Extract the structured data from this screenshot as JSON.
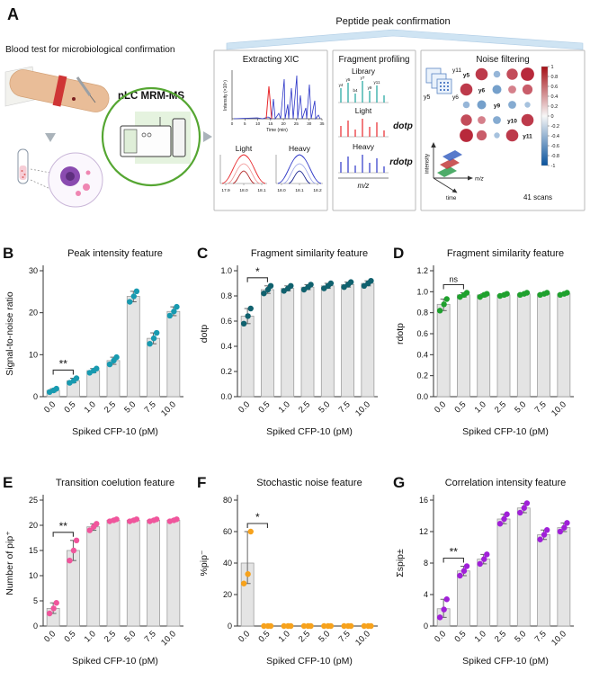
{
  "panel_a": {
    "label": "A",
    "caption_top": "Peptide peak confirmation",
    "left_caption": "Blood test for microbiological confirmation",
    "instrument_label": "nLC MRM-MS",
    "xic": {
      "title": "Extracting XIC",
      "ylabel": "Intensity (×10⁵)",
      "xlabel": "Time (min)",
      "xticks": [
        "0",
        "5",
        "10",
        "15",
        "20",
        "25",
        "30",
        "35"
      ],
      "light_label": "Light",
      "heavy_label": "Heavy",
      "light_color": "#e8262a",
      "heavy_color": "#2b35c7",
      "light_xticks": [
        "17.9",
        "18.0",
        "18.1"
      ],
      "heavy_xticks": [
        "18.0",
        "18.1",
        "18.2"
      ]
    },
    "frag": {
      "title": "Fragment profiling",
      "library_label": "Library",
      "light_label": "Light",
      "heavy_label": "Heavy",
      "dotp_label": "dotp",
      "rdotp_label": "rdotp",
      "mz_label": "m/z",
      "library_color": "#1ba39c",
      "light_color": "#e8262a",
      "heavy_color": "#2b35c7",
      "fragment_labels": [
        "y4",
        "y5",
        "b4",
        "y7",
        "y9",
        "y11"
      ]
    },
    "noise": {
      "title": "Noise filtering",
      "stack_labels": [
        "y11",
        "y5",
        "y6"
      ],
      "matrix_labels": [
        "y5",
        "y6",
        "y9",
        "y10",
        "y11"
      ],
      "matrix_values": [
        [
          1,
          0.8,
          -0.3,
          0.7,
          0.9
        ],
        [
          0.8,
          1,
          -0.5,
          0.4,
          0.6
        ],
        [
          -0.3,
          -0.5,
          1,
          -0.4,
          -0.2
        ],
        [
          0.7,
          0.4,
          -0.4,
          1,
          0.8
        ],
        [
          0.9,
          0.6,
          -0.2,
          0.8,
          1
        ]
      ],
      "colorbar_ticks": [
        "1",
        "0.8",
        "0.6",
        "0.4",
        "0.2",
        "0",
        "-0.2",
        "-0.4",
        "-0.6",
        "-0.8",
        "-1"
      ],
      "positive_color": "#b2182b",
      "negative_color": "#2166ac",
      "axis_intensity": "intensity",
      "axis_time": "time",
      "axis_mz": "m/z",
      "scans_label": "41 scans"
    }
  },
  "chart_data": [
    {
      "type": "bar",
      "panel": "B",
      "title": "Peak intensity feature",
      "xlabel": "Spiked CFP-10 (pM)",
      "ylabel": "Signal-to-noise ratio",
      "categories": [
        "0.0",
        "0.5",
        "1.0",
        "2.5",
        "5.0",
        "7.5",
        "10.0"
      ],
      "values": [
        1.5,
        3.8,
        6.2,
        8.6,
        23.9,
        13.9,
        20.3
      ],
      "points": [
        [
          1.1,
          1.5,
          1.9
        ],
        [
          3.3,
          3.8,
          4.4
        ],
        [
          5.7,
          6.2,
          6.7
        ],
        [
          7.7,
          8.6,
          9.4
        ],
        [
          22.6,
          23.9,
          25.1
        ],
        [
          12.6,
          13.9,
          15.2
        ],
        [
          19.3,
          20.3,
          21.4
        ]
      ],
      "ylim": [
        0,
        30
      ],
      "yticks": [
        0,
        10,
        20,
        30
      ],
      "ytick_labels": [
        "0",
        "10",
        "20",
        "30"
      ],
      "dot_color": "#189ab0",
      "significance": {
        "label": "**",
        "from": 0,
        "to": 1
      }
    },
    {
      "type": "bar",
      "panel": "C",
      "title": "Fragment similarity feature",
      "xlabel": "Spiked CFP-10 (pM)",
      "ylabel": "dotp",
      "categories": [
        "0.0",
        "0.5",
        "1.0",
        "2.5",
        "5.0",
        "7.5",
        "10.0"
      ],
      "values": [
        0.64,
        0.85,
        0.86,
        0.87,
        0.88,
        0.89,
        0.9
      ],
      "points": [
        [
          0.58,
          0.64,
          0.7
        ],
        [
          0.82,
          0.85,
          0.88
        ],
        [
          0.84,
          0.86,
          0.88
        ],
        [
          0.85,
          0.87,
          0.89
        ],
        [
          0.86,
          0.88,
          0.9
        ],
        [
          0.87,
          0.89,
          0.91
        ],
        [
          0.88,
          0.9,
          0.92
        ]
      ],
      "ylim": [
        0,
        1.0
      ],
      "yticks": [
        0,
        0.2,
        0.4,
        0.6,
        0.8,
        1.0
      ],
      "ytick_labels": [
        "0.0",
        "0.2",
        "0.4",
        "0.6",
        "0.8",
        "1.0"
      ],
      "dot_color": "#10616e",
      "significance": {
        "label": "*",
        "from": 0,
        "to": 1
      }
    },
    {
      "type": "bar",
      "panel": "D",
      "title": "Fragment similarity feature",
      "xlabel": "Spiked CFP-10 (pM)",
      "ylabel": "rdotp",
      "categories": [
        "0.0",
        "0.5",
        "1.0",
        "2.5",
        "5.0",
        "7.5",
        "10.0"
      ],
      "values": [
        0.88,
        0.97,
        0.97,
        0.97,
        0.98,
        0.98,
        0.98
      ],
      "points": [
        [
          0.82,
          0.88,
          0.93
        ],
        [
          0.95,
          0.97,
          0.99
        ],
        [
          0.95,
          0.97,
          0.98
        ],
        [
          0.96,
          0.97,
          0.98
        ],
        [
          0.97,
          0.98,
          0.99
        ],
        [
          0.97,
          0.98,
          0.99
        ],
        [
          0.97,
          0.98,
          0.99
        ]
      ],
      "ylim": [
        0,
        1.2
      ],
      "yticks": [
        0,
        0.2,
        0.4,
        0.6,
        0.8,
        1.0,
        1.2
      ],
      "ytick_labels": [
        "0.0",
        "0.2",
        "0.4",
        "0.6",
        "0.8",
        "1.0",
        "1.2"
      ],
      "dot_color": "#1fa12e",
      "significance": {
        "label": "ns",
        "from": 0,
        "to": 1
      }
    },
    {
      "type": "bar",
      "panel": "E",
      "title": "Transition coelution feature",
      "xlabel": "Spiked CFP-10 (pM)",
      "ylabel": "Number of pip⁺",
      "categories": [
        "0.0",
        "0.5",
        "1.0",
        "2.5",
        "5.0",
        "7.5",
        "10.0"
      ],
      "values": [
        3.5,
        15.0,
        19.7,
        21.0,
        21.0,
        21.0,
        21.0
      ],
      "points": [
        [
          2.5,
          3.5,
          4.6
        ],
        [
          13.0,
          15.0,
          17.0
        ],
        [
          19.0,
          19.7,
          20.3
        ],
        [
          20.8,
          21.0,
          21.2
        ],
        [
          20.8,
          21.0,
          21.2
        ],
        [
          20.8,
          21.0,
          21.2
        ],
        [
          20.8,
          21.0,
          21.2
        ]
      ],
      "ylim": [
        0,
        25
      ],
      "yticks": [
        0,
        5,
        10,
        15,
        20,
        25
      ],
      "ytick_labels": [
        "0",
        "5",
        "10",
        "15",
        "20",
        "25"
      ],
      "dot_color": "#f0559c",
      "significance": {
        "label": "**",
        "from": 0,
        "to": 1
      }
    },
    {
      "type": "bar",
      "panel": "F",
      "title": "Stochastic noise feature",
      "xlabel": "Spiked CFP-10 (pM)",
      "ylabel": "%pip⁻",
      "categories": [
        "0.0",
        "0.5",
        "1.0",
        "2.5",
        "5.0",
        "7.5",
        "10.0"
      ],
      "values": [
        40,
        0,
        0,
        0,
        0,
        0,
        0
      ],
      "points": [
        [
          27,
          33,
          60
        ],
        [
          0,
          0,
          0
        ],
        [
          0,
          0,
          0
        ],
        [
          0,
          0,
          0
        ],
        [
          0,
          0,
          0
        ],
        [
          0,
          0,
          0
        ],
        [
          0,
          0,
          0
        ]
      ],
      "ylim": [
        0,
        80
      ],
      "yticks": [
        0,
        20,
        40,
        60,
        80
      ],
      "ytick_labels": [
        "0",
        "20",
        "40",
        "60",
        "80"
      ],
      "dot_color": "#f7a21c",
      "significance": {
        "label": "*",
        "from": 0,
        "to": 1
      }
    },
    {
      "type": "bar",
      "panel": "G",
      "title": "Correlation intensity feature",
      "xlabel": "Spiked CFP-10 (pM)",
      "ylabel": "Σspip±",
      "categories": [
        "0.0",
        "0.5",
        "1.0",
        "2.5",
        "5.0",
        "7.5",
        "10.0"
      ],
      "values": [
        2.2,
        7.0,
        8.5,
        13.6,
        15.0,
        11.6,
        12.5
      ],
      "points": [
        [
          1.1,
          2.1,
          3.4
        ],
        [
          6.4,
          7.0,
          7.6
        ],
        [
          7.9,
          8.5,
          9.1
        ],
        [
          13.0,
          13.6,
          14.2
        ],
        [
          14.4,
          15.0,
          15.6
        ],
        [
          11.0,
          11.6,
          12.2
        ],
        [
          12.0,
          12.5,
          13.1
        ]
      ],
      "ylim": [
        0,
        16
      ],
      "yticks": [
        0,
        4,
        8,
        12,
        16
      ],
      "ytick_labels": [
        "0",
        "4",
        "8",
        "12",
        "16"
      ],
      "dot_color": "#a020d8",
      "significance": {
        "label": "**",
        "from": 0,
        "to": 1
      }
    }
  ]
}
